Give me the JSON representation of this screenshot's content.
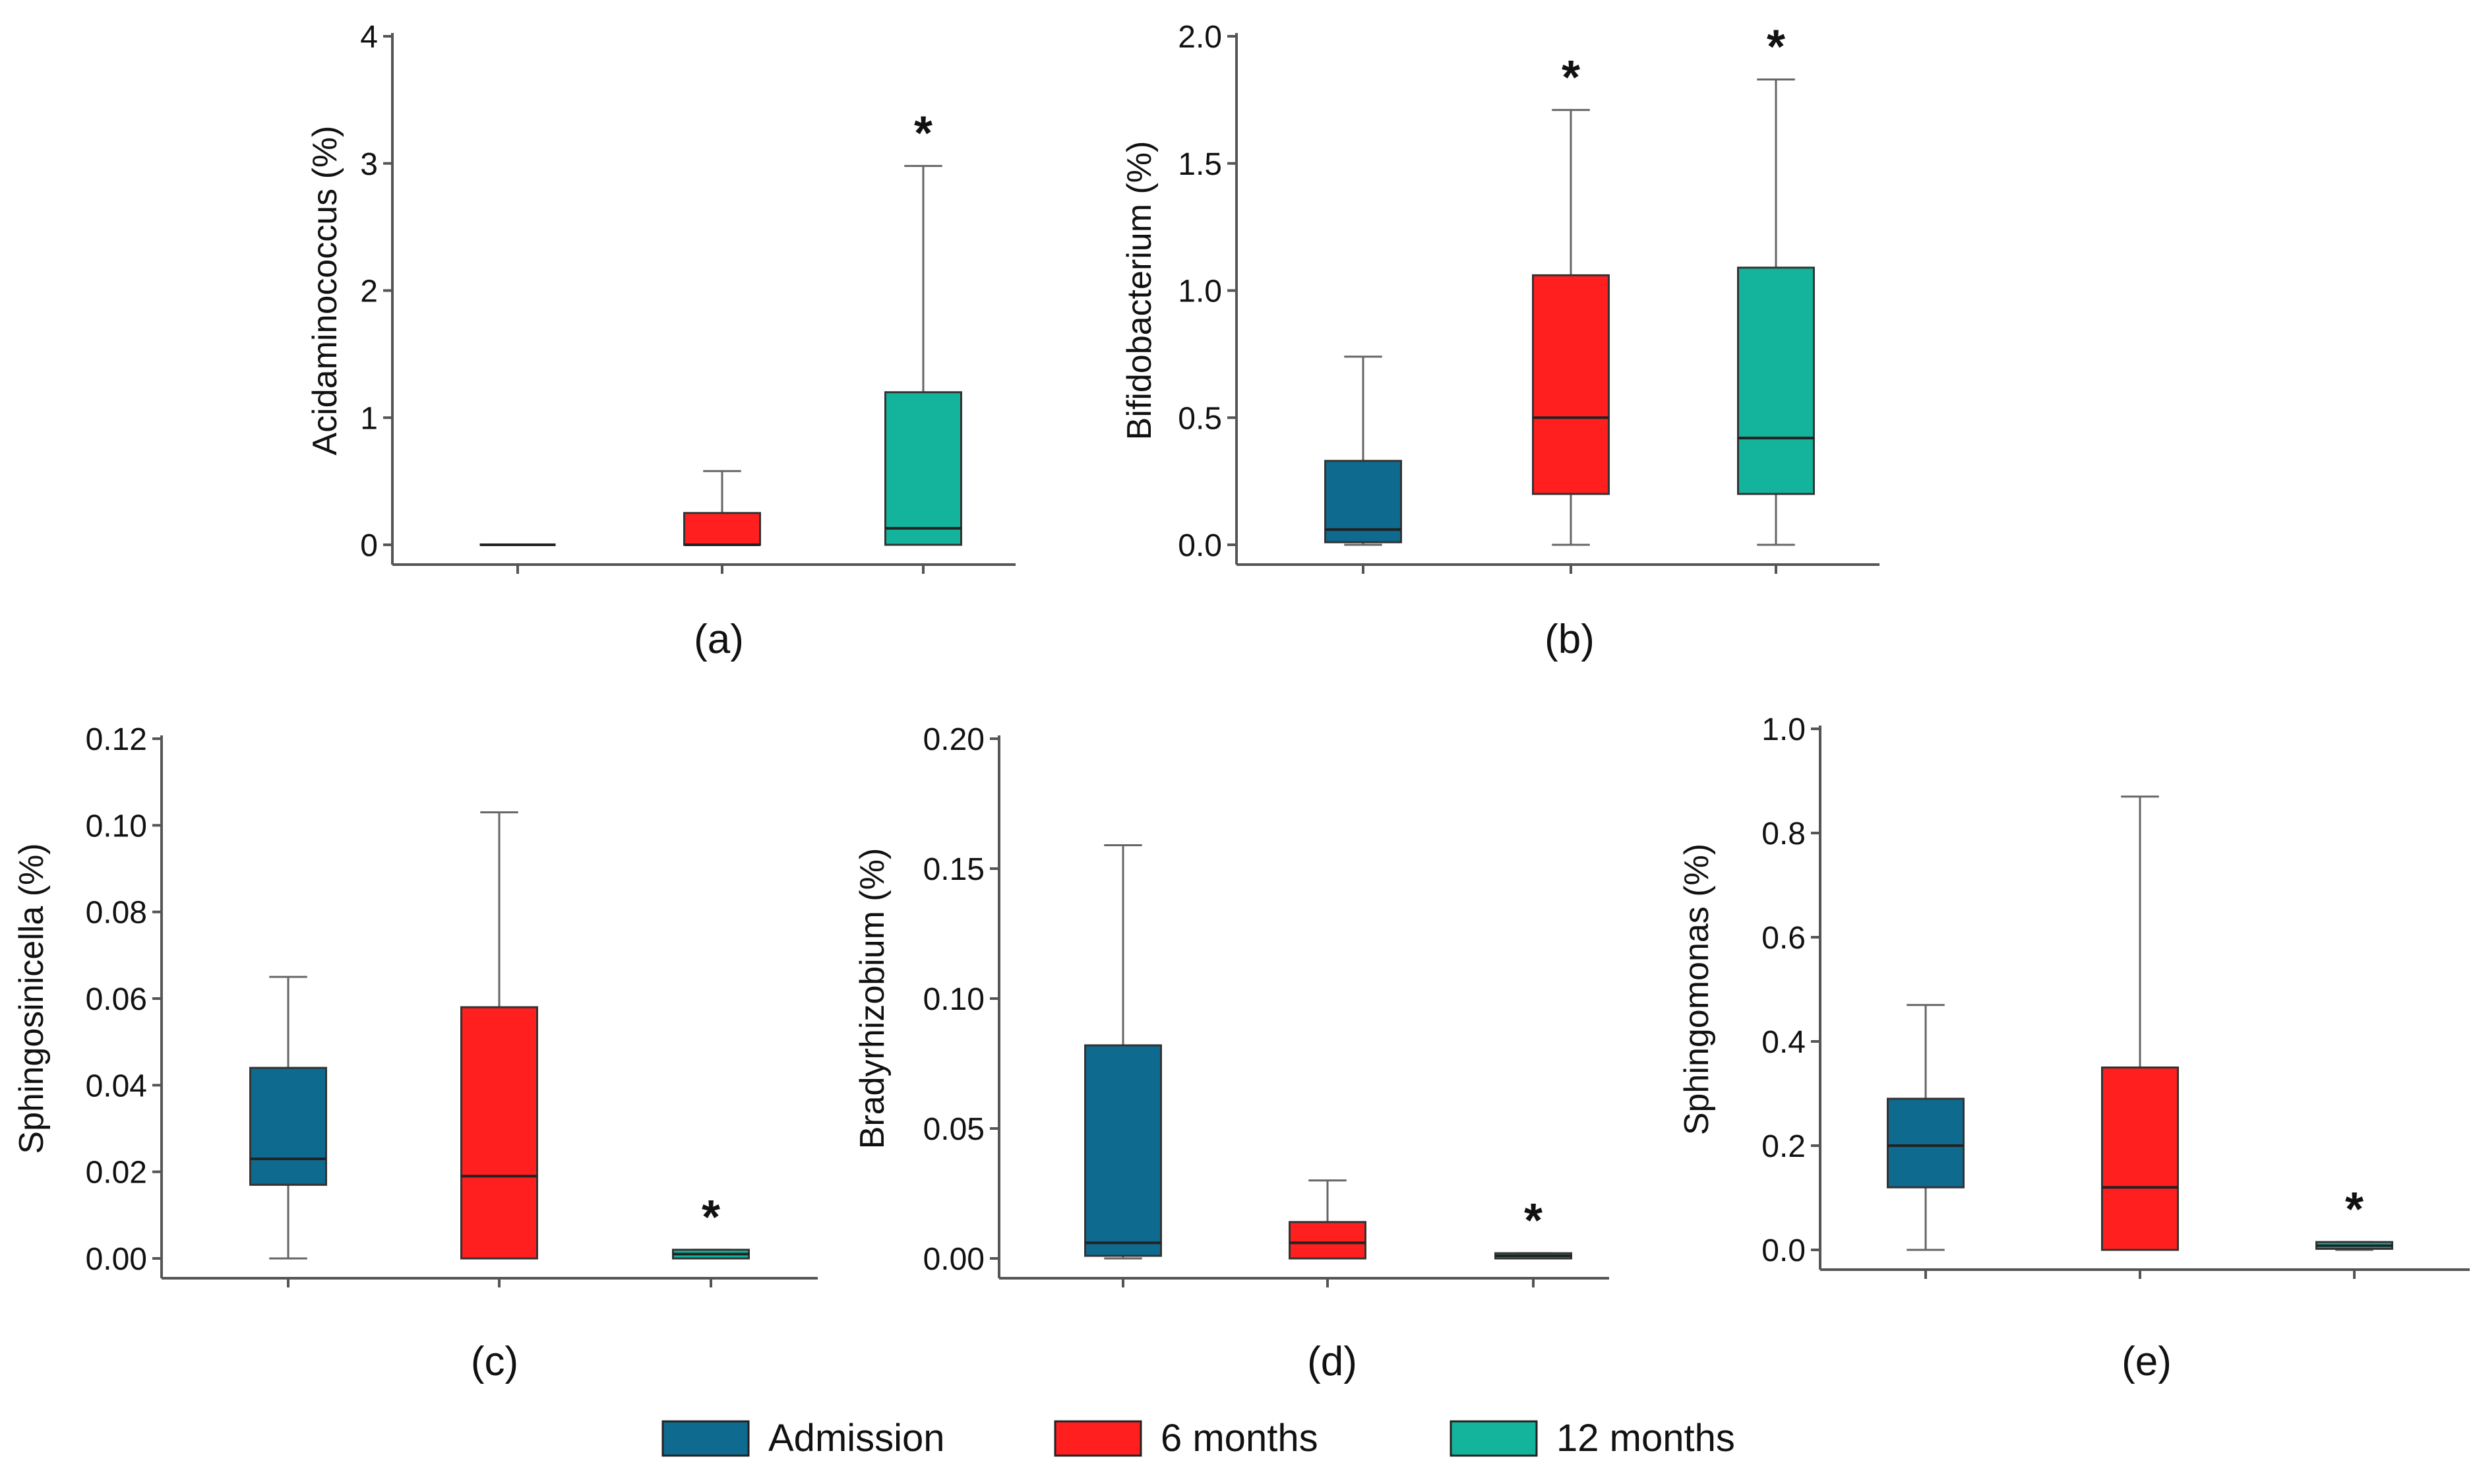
{
  "colors": {
    "Admission": "#0e6a8f",
    "6 months": "#ff1f1f",
    "12 months": "#14b39c",
    "axis": "#555555",
    "whisker": "#666666",
    "median": "#222222"
  },
  "legend": {
    "position": "bottom-center",
    "items": [
      {
        "name": "Admission",
        "color": "#0e6a8f"
      },
      {
        "name": "6 months",
        "color": "#ff1f1f"
      },
      {
        "name": "12 months",
        "color": "#14b39c"
      }
    ]
  },
  "chart_data": [
    {
      "type": "boxplot",
      "panel": "(a)",
      "ylabel": "Acidaminococcus (%)",
      "ylim": [
        0,
        4
      ],
      "yticks": [
        "0",
        "1",
        "2",
        "3",
        "4"
      ],
      "categories": [
        "Admission",
        "6 months",
        "12 months"
      ],
      "boxes": [
        {
          "group": "Admission",
          "min": 0,
          "q1": 0,
          "median": 0,
          "q3": 0,
          "max": 0,
          "sig": ""
        },
        {
          "group": "6 months",
          "min": 0,
          "q1": 0,
          "median": 0,
          "q3": 0.25,
          "max": 0.58,
          "sig": ""
        },
        {
          "group": "12 months",
          "min": 0,
          "q1": 0,
          "median": 0.13,
          "q3": 1.2,
          "max": 2.98,
          "sig": "*"
        }
      ]
    },
    {
      "type": "boxplot",
      "panel": "(b)",
      "ylabel": "Bifidobacterium (%)",
      "ylim": [
        0,
        2
      ],
      "yticks": [
        "0.0",
        "0.5",
        "1.0",
        "1.5",
        "2.0"
      ],
      "categories": [
        "Admission",
        "6 months",
        "12 months"
      ],
      "boxes": [
        {
          "group": "Admission",
          "min": 0,
          "q1": 0.01,
          "median": 0.06,
          "q3": 0.33,
          "max": 0.74,
          "sig": ""
        },
        {
          "group": "6 months",
          "min": 0,
          "q1": 0.2,
          "median": 0.5,
          "q3": 1.06,
          "max": 1.71,
          "sig": "*"
        },
        {
          "group": "12 months",
          "min": 0,
          "q1": 0.2,
          "median": 0.42,
          "q3": 1.09,
          "max": 1.83,
          "sig": "*"
        }
      ]
    },
    {
      "type": "boxplot",
      "panel": "(c)",
      "ylabel": "Sphingosinicella (%)",
      "ylim": [
        0,
        0.12
      ],
      "yticks": [
        "0.00",
        "0.02",
        "0.04",
        "0.06",
        "0.08",
        "0.10",
        "0.12"
      ],
      "categories": [
        "Admission",
        "6 months",
        "12 months"
      ],
      "boxes": [
        {
          "group": "Admission",
          "min": 0,
          "q1": 0.017,
          "median": 0.023,
          "q3": 0.044,
          "max": 0.065,
          "sig": ""
        },
        {
          "group": "6 months",
          "min": 0,
          "q1": 0,
          "median": 0.019,
          "q3": 0.058,
          "max": 0.103,
          "sig": ""
        },
        {
          "group": "12 months",
          "min": 0,
          "q1": 0,
          "median": 0.001,
          "q3": 0.002,
          "max": 0.002,
          "sig": "*"
        }
      ]
    },
    {
      "type": "boxplot",
      "panel": "(d)",
      "ylabel": "Bradyrhizobium (%)",
      "ylim": [
        0,
        0.2
      ],
      "yticks": [
        "0.00",
        "0.05",
        "0.10",
        "0.15",
        "0.20"
      ],
      "categories": [
        "Admission",
        "6 months",
        "12 months"
      ],
      "boxes": [
        {
          "group": "Admission",
          "min": 0,
          "q1": 0.001,
          "median": 0.006,
          "q3": 0.082,
          "max": 0.159,
          "sig": ""
        },
        {
          "group": "6 months",
          "min": 0,
          "q1": 0,
          "median": 0.006,
          "q3": 0.014,
          "max": 0.03,
          "sig": ""
        },
        {
          "group": "12 months",
          "min": 0,
          "q1": 0,
          "median": 0.001,
          "q3": 0.002,
          "max": 0.002,
          "sig": "*"
        }
      ]
    },
    {
      "type": "boxplot",
      "panel": "(e)",
      "ylabel": "Sphingomonas (%)",
      "ylim": [
        0,
        1
      ],
      "yticks": [
        "0.0",
        "0.2",
        "0.4",
        "0.6",
        "0.8",
        "1.0"
      ],
      "categories": [
        "Admission",
        "6 months",
        "12 months"
      ],
      "boxes": [
        {
          "group": "Admission",
          "min": 0,
          "q1": 0.12,
          "median": 0.2,
          "q3": 0.29,
          "max": 0.47,
          "sig": ""
        },
        {
          "group": "6 months",
          "min": 0,
          "q1": 0,
          "median": 0.12,
          "q3": 0.35,
          "max": 0.87,
          "sig": ""
        },
        {
          "group": "12 months",
          "min": 0,
          "q1": 0.002,
          "median": 0.008,
          "q3": 0.015,
          "max": 0.015,
          "sig": "*"
        }
      ]
    }
  ]
}
